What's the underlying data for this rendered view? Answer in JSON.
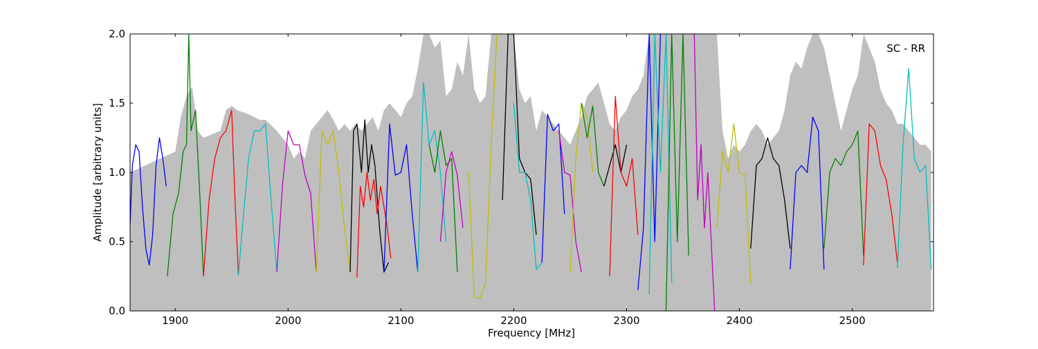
{
  "chart_data": {
    "type": "line",
    "title": "",
    "annotation": "SC - RR",
    "legend": "none",
    "grid": false,
    "xlabel": "Frequency [MHz]",
    "ylabel": "Amplitude [arbitrary units]",
    "xlim": [
      1860,
      2572
    ],
    "ylim": [
      0.0,
      2.0
    ],
    "xticks": [
      1900,
      2000,
      2100,
      2200,
      2300,
      2400,
      2500
    ],
    "yticks": [
      0.0,
      0.5,
      1.0,
      1.5,
      2.0
    ],
    "xtick_labels": [
      "1900",
      "2000",
      "2100",
      "2200",
      "2300",
      "2400",
      "2500"
    ],
    "ytick_labels": [
      "0.0",
      "0.5",
      "1.0",
      "1.5",
      "2.0"
    ],
    "envelope": {
      "color": "#bfbfbf",
      "x": [
        1860,
        1900,
        1905,
        1910,
        1915,
        1920,
        1925,
        1940,
        1945,
        1950,
        1955,
        1965,
        1970,
        1975,
        1980,
        1990,
        1995,
        2000,
        2005,
        2010,
        2015,
        2020,
        2025,
        2030,
        2035,
        2040,
        2045,
        2050,
        2055,
        2060,
        2065,
        2070,
        2075,
        2080,
        2085,
        2090,
        2095,
        2100,
        2105,
        2110,
        2115,
        2120,
        2125,
        2130,
        2135,
        2140,
        2145,
        2150,
        2155,
        2160,
        2165,
        2170,
        2175,
        2180,
        2185,
        2190,
        2195,
        2200,
        2205,
        2210,
        2215,
        2220,
        2225,
        2230,
        2235,
        2240,
        2245,
        2250,
        2255,
        2260,
        2265,
        2270,
        2275,
        2280,
        2285,
        2290,
        2295,
        2300,
        2305,
        2310,
        2315,
        2320,
        2325,
        2330,
        2335,
        2340,
        2345,
        2350,
        2355,
        2360,
        2365,
        2370,
        2375,
        2380,
        2385,
        2390,
        2395,
        2400,
        2405,
        2410,
        2415,
        2420,
        2425,
        2430,
        2435,
        2440,
        2445,
        2450,
        2455,
        2460,
        2465,
        2470,
        2475,
        2480,
        2485,
        2490,
        2495,
        2500,
        2505,
        2510,
        2515,
        2520,
        2525,
        2530,
        2535,
        2540,
        2545,
        2550,
        2555,
        2560,
        2565,
        2570
      ],
      "y": [
        1.0,
        1.15,
        1.4,
        1.55,
        1.62,
        1.3,
        1.25,
        1.3,
        1.45,
        1.48,
        1.45,
        1.42,
        1.4,
        1.38,
        1.38,
        1.3,
        1.25,
        1.2,
        1.1,
        1.15,
        1.1,
        1.3,
        1.35,
        1.4,
        1.45,
        1.38,
        1.3,
        1.35,
        1.3,
        1.35,
        1.3,
        1.35,
        1.4,
        1.3,
        1.45,
        1.5,
        1.45,
        1.4,
        1.5,
        1.55,
        1.75,
        2.0,
        2.0,
        1.9,
        1.95,
        1.55,
        1.6,
        1.8,
        1.7,
        2.0,
        1.6,
        1.5,
        1.55,
        2.0,
        2.0,
        2.0,
        2.0,
        2.0,
        1.6,
        1.5,
        1.55,
        1.3,
        1.45,
        1.4,
        1.35,
        1.3,
        1.25,
        1.2,
        1.3,
        1.4,
        1.55,
        1.6,
        1.65,
        1.5,
        1.35,
        1.3,
        1.4,
        1.45,
        1.55,
        1.6,
        1.7,
        2.0,
        2.0,
        2.0,
        2.0,
        2.0,
        2.0,
        2.0,
        2.0,
        2.0,
        2.0,
        2.0,
        2.0,
        2.0,
        1.3,
        1.1,
        1.2,
        1.15,
        1.2,
        1.3,
        1.35,
        1.3,
        1.2,
        1.25,
        1.3,
        1.45,
        1.7,
        1.8,
        1.75,
        1.9,
        2.0,
        2.0,
        1.9,
        1.7,
        1.5,
        1.3,
        1.45,
        1.6,
        1.7,
        2.0,
        1.9,
        1.8,
        1.6,
        1.5,
        1.45,
        1.35,
        1.35,
        1.3,
        1.25,
        1.2,
        1.2,
        1.15
      ]
    },
    "series": [
      {
        "color": "#0000ff",
        "x": [
          1860,
          1862,
          1865,
          1868,
          1871,
          1874,
          1877,
          1880,
          1883,
          1886,
          1889,
          1892
        ],
        "y": [
          0.62,
          1.05,
          1.2,
          1.15,
          0.75,
          0.45,
          0.33,
          0.55,
          1.05,
          1.25,
          1.1,
          0.9
        ]
      },
      {
        "color": "#008000",
        "x": [
          1893,
          1898,
          1903,
          1907,
          1910,
          1912,
          1914,
          1918,
          1922,
          1925
        ],
        "y": [
          0.25,
          0.7,
          0.85,
          1.15,
          1.2,
          2.0,
          1.3,
          1.45,
          0.8,
          0.25
        ]
      },
      {
        "color": "#ff0000",
        "x": [
          1925,
          1930,
          1935,
          1940,
          1945,
          1950,
          1953,
          1956
        ],
        "y": [
          0.25,
          0.8,
          1.1,
          1.25,
          1.3,
          1.45,
          0.8,
          0.26
        ]
      },
      {
        "color": "#00bfbf",
        "x": [
          1956,
          1960,
          1965,
          1970,
          1975,
          1980,
          1985,
          1990
        ],
        "y": [
          0.26,
          0.65,
          1.1,
          1.3,
          1.3,
          1.35,
          0.8,
          0.28
        ]
      },
      {
        "color": "#bf00bf",
        "x": [
          1990,
          1995,
          2000,
          2005,
          2010,
          2015,
          2020,
          2025
        ],
        "y": [
          0.28,
          0.9,
          1.3,
          1.2,
          1.2,
          0.98,
          0.85,
          0.28
        ]
      },
      {
        "color": "#bfbf00",
        "x": [
          2025,
          2030,
          2035,
          2040,
          2045,
          2050,
          2055
        ],
        "y": [
          0.28,
          1.3,
          1.2,
          1.3,
          1.0,
          0.6,
          0.28
        ]
      },
      {
        "color": "#000000",
        "x": [
          2055,
          2058,
          2061,
          2065,
          2068,
          2071,
          2074,
          2077,
          2081,
          2085,
          2089
        ],
        "y": [
          0.28,
          1.3,
          1.35,
          1.0,
          1.38,
          1.0,
          1.2,
          1.05,
          0.6,
          0.28,
          0.35
        ]
      },
      {
        "color": "#ff0000",
        "x": [
          2061,
          2064,
          2067,
          2070,
          2073,
          2076,
          2079,
          2082,
          2085,
          2088,
          2091
        ],
        "y": [
          0.24,
          0.9,
          0.75,
          1.0,
          0.8,
          0.95,
          0.7,
          0.9,
          0.75,
          0.6,
          0.38
        ]
      },
      {
        "color": "#0000ff",
        "x": [
          2085,
          2090,
          2095,
          2100,
          2105,
          2110,
          2115
        ],
        "y": [
          0.28,
          1.35,
          0.98,
          1.0,
          1.2,
          0.7,
          0.28
        ]
      },
      {
        "color": "#00bfbf",
        "x": [
          2115,
          2120,
          2125,
          2130,
          2135,
          2140
        ],
        "y": [
          0.28,
          1.65,
          1.2,
          1.3,
          1.0,
          0.5
        ]
      },
      {
        "color": "#008000",
        "x": [
          2125,
          2130,
          2135,
          2140,
          2145,
          2150
        ],
        "y": [
          1.2,
          1.0,
          1.3,
          1.05,
          1.1,
          0.28
        ]
      },
      {
        "color": "#bf00bf",
        "x": [
          2135,
          2140,
          2145,
          2150,
          2155
        ],
        "y": [
          0.5,
          1.0,
          1.15,
          0.98,
          0.6
        ]
      },
      {
        "color": "#bfbf00",
        "x": [
          2160,
          2165,
          2170,
          2175,
          2180,
          2185
        ],
        "y": [
          1.0,
          0.1,
          0.09,
          0.2,
          1.2,
          2.0
        ]
      },
      {
        "color": "#000000",
        "x": [
          2190,
          2195,
          2200,
          2205,
          2210,
          2215,
          2220
        ],
        "y": [
          0.8,
          2.0,
          2.0,
          1.1,
          1.0,
          0.95,
          0.55
        ]
      },
      {
        "color": "#00bfbf",
        "x": [
          2200,
          2205,
          2210,
          2215,
          2220,
          2225
        ],
        "y": [
          1.5,
          1.0,
          1.0,
          0.8,
          0.3,
          0.35
        ]
      },
      {
        "color": "#0000ff",
        "x": [
          2225,
          2230,
          2235,
          2240,
          2245
        ],
        "y": [
          0.35,
          1.42,
          1.3,
          1.35,
          0.7
        ]
      },
      {
        "color": "#bf00bf",
        "x": [
          2240,
          2245,
          2250,
          2255,
          2260
        ],
        "y": [
          1.3,
          1.0,
          0.98,
          0.5,
          0.28
        ]
      },
      {
        "color": "#bfbf00",
        "x": [
          2250,
          2255,
          2260,
          2265,
          2270
        ],
        "y": [
          0.28,
          1.1,
          1.5,
          1.4,
          1.0
        ]
      },
      {
        "color": "#008000",
        "x": [
          2260,
          2265,
          2270,
          2275,
          2280
        ],
        "y": [
          1.5,
          1.25,
          1.48,
          1.0,
          0.9
        ]
      },
      {
        "color": "#000000",
        "x": [
          2280,
          2285,
          2290,
          2295,
          2300
        ],
        "y": [
          0.9,
          1.05,
          1.2,
          1.0,
          1.2
        ]
      },
      {
        "color": "#ff0000",
        "x": [
          2285,
          2290,
          2295,
          2300,
          2305,
          2310
        ],
        "y": [
          0.25,
          1.55,
          1.0,
          0.9,
          1.1,
          0.55
        ]
      },
      {
        "color": "#0000ff",
        "x": [
          2310,
          2315,
          2320,
          2325,
          2330
        ],
        "y": [
          0.15,
          0.6,
          2.0,
          0.5,
          2.0
        ]
      },
      {
        "color": "#00bfbf",
        "x": [
          2320,
          2325,
          2330,
          2335,
          2340
        ],
        "y": [
          0.12,
          2.0,
          1.0,
          2.0,
          0.2
        ]
      },
      {
        "color": "#008000",
        "x": [
          2335,
          2340,
          2345,
          2350,
          2355
        ],
        "y": [
          0.0,
          2.0,
          0.5,
          2.0,
          0.4
        ]
      },
      {
        "color": "#bf00bf",
        "x": [
          2360,
          2363,
          2366,
          2369,
          2372,
          2375,
          2378
        ],
        "y": [
          2.0,
          0.8,
          1.2,
          0.6,
          1.0,
          0.5,
          0.0
        ]
      },
      {
        "color": "#bfbf00",
        "x": [
          2380,
          2385,
          2390,
          2395,
          2400,
          2405,
          2410
        ],
        "y": [
          0.6,
          1.15,
          1.0,
          1.35,
          1.0,
          0.98,
          0.2
        ]
      },
      {
        "color": "#000000",
        "x": [
          2410,
          2415,
          2420,
          2425,
          2430,
          2435,
          2440,
          2445
        ],
        "y": [
          0.45,
          1.05,
          1.1,
          1.25,
          1.1,
          1.05,
          0.8,
          0.45
        ]
      },
      {
        "color": "#0000ff",
        "x": [
          2445,
          2450,
          2455,
          2460,
          2465,
          2470,
          2475
        ],
        "y": [
          0.3,
          1.0,
          1.05,
          1.0,
          1.4,
          1.3,
          0.3
        ]
      },
      {
        "color": "#008000",
        "x": [
          2475,
          2480,
          2485,
          2490,
          2495,
          2500,
          2505,
          2510
        ],
        "y": [
          0.45,
          1.0,
          1.1,
          1.05,
          1.15,
          1.2,
          1.3,
          0.4
        ]
      },
      {
        "color": "#ff0000",
        "x": [
          2510,
          2515,
          2520,
          2525,
          2530,
          2535,
          2540
        ],
        "y": [
          0.33,
          1.35,
          1.3,
          1.05,
          0.95,
          0.7,
          0.35
        ]
      },
      {
        "color": "#00bfbf",
        "x": [
          2540,
          2545,
          2550,
          2555,
          2560,
          2565,
          2570
        ],
        "y": [
          0.31,
          1.2,
          1.75,
          1.1,
          1.0,
          1.05,
          0.3
        ]
      }
    ]
  }
}
